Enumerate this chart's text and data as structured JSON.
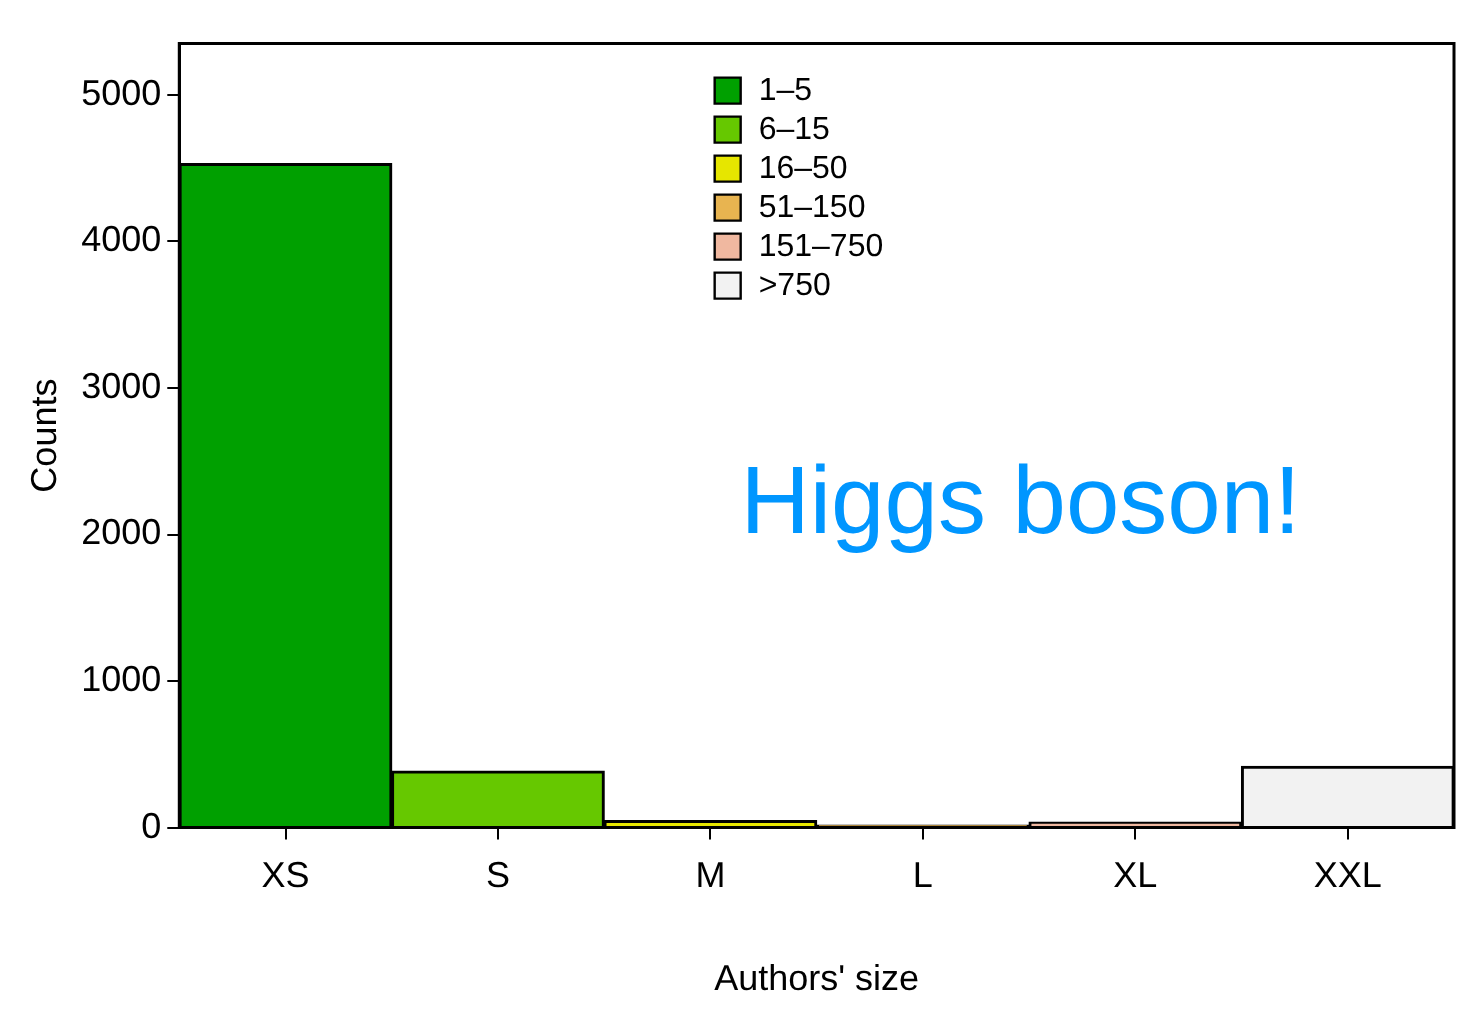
{
  "chart_data": {
    "type": "bar",
    "xlabel": "Authors' size",
    "ylabel": "Counts",
    "categories": [
      "XS",
      "S",
      "M",
      "L",
      "XL",
      "XXL"
    ],
    "series": [
      {
        "name": "1–5",
        "color": "#00a000",
        "values": [
          4530,
          null,
          null,
          null,
          null,
          null
        ]
      },
      {
        "name": "6–15",
        "color": "#66c800",
        "values": [
          null,
          386,
          null,
          null,
          null,
          null
        ]
      },
      {
        "name": "16–50",
        "color": "#e6e600",
        "values": [
          null,
          null,
          48,
          null,
          null,
          null
        ]
      },
      {
        "name": "51–150",
        "color": "#e8b450",
        "values": [
          null,
          null,
          null,
          16,
          null,
          null
        ]
      },
      {
        "name": "151–750",
        "color": "#f0b8a0",
        "values": [
          null,
          null,
          null,
          null,
          37,
          null
        ]
      },
      {
        "name": ">750",
        "color": "#f2f2f2",
        "values": [
          null,
          null,
          null,
          null,
          null,
          418
        ]
      }
    ],
    "ylim": [
      0,
      5350
    ],
    "yticks": [
      0,
      1000,
      2000,
      3000,
      4000,
      5000
    ],
    "annotations": [
      "Higgs boson!"
    ],
    "legend": "top",
    "grid": false
  }
}
